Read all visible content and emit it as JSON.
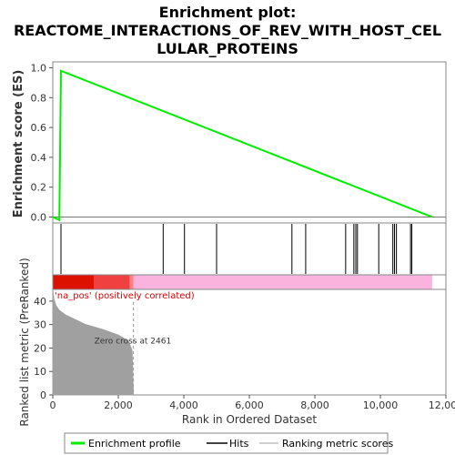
{
  "chart_data": {
    "type": "line",
    "title_lines": [
      "Enrichment plot:",
      "REACTOME_INTERACTIONS_OF_REV_WITH_HOST_CEL",
      "LULAR_PROTEINS"
    ],
    "panels": {
      "es": {
        "ylabel": "Enrichment score (ES)",
        "ylim": [
          -0.04,
          1.04
        ],
        "yticks": [
          0.0,
          0.2,
          0.4,
          0.6,
          0.8,
          1.0
        ],
        "ytick_labels": [
          "0.0",
          "0.2",
          "0.4",
          "0.6",
          "0.8",
          "1.0"
        ],
        "series": [
          {
            "name": "Enrichment profile",
            "color": "#00ee00",
            "x": [
              0,
              200,
              250,
              11580
            ],
            "y": [
              0.0,
              -0.02,
              0.98,
              0.0
            ]
          }
        ],
        "zero_line": true
      },
      "hits": {
        "positions": [
          250,
          3370,
          4020,
          5000,
          7300,
          7720,
          8940,
          9190,
          9250,
          9300,
          9950,
          10380,
          10430,
          10490,
          10920,
          10960
        ]
      },
      "bar": {
        "segments": [
          {
            "from": 0,
            "to": 1250,
            "color": "#dd1100"
          },
          {
            "from": 1250,
            "to": 2350,
            "color": "#f04040"
          },
          {
            "from": 2350,
            "to": 2461,
            "color": "#ff8080"
          },
          {
            "from": 2461,
            "to": 11580,
            "color": "#f9b3dd"
          }
        ],
        "label": "'na_pos' (positively correlated)",
        "label_color": "#dd0000"
      },
      "metric": {
        "ylabel": "Ranked list metric (PreRanked)",
        "xlabel": "Rank in Ordered Dataset",
        "ylim": [
          0,
          45
        ],
        "yticks": [
          0,
          10,
          20,
          30,
          40
        ],
        "ytick_labels": [
          "0",
          "10",
          "20",
          "30",
          "40"
        ],
        "xlim": [
          0,
          12000
        ],
        "xticks": [
          0,
          2000,
          4000,
          6000,
          8000,
          10000,
          12000
        ],
        "xtick_labels": [
          "0",
          "2,000",
          "4,000",
          "6,000",
          "8,000",
          "10,000",
          "12,000"
        ],
        "curve": {
          "x": [
            0,
            30,
            100,
            200,
            400,
            700,
            1000,
            1500,
            2000,
            2300,
            2420,
            2461
          ],
          "y": [
            45,
            41,
            38,
            36,
            34,
            32,
            30,
            28,
            25.5,
            23,
            19,
            0
          ]
        },
        "color": "#a0a0a0",
        "zero_cross": 2461,
        "annotation": "Zero cross at 2461"
      }
    },
    "legend": [
      {
        "label": "Enrichment profile",
        "color": "#00ee00"
      },
      {
        "label": "Hits",
        "color": "#000000"
      },
      {
        "label": "Ranking metric scores",
        "color": "#c0c0c0"
      }
    ]
  }
}
